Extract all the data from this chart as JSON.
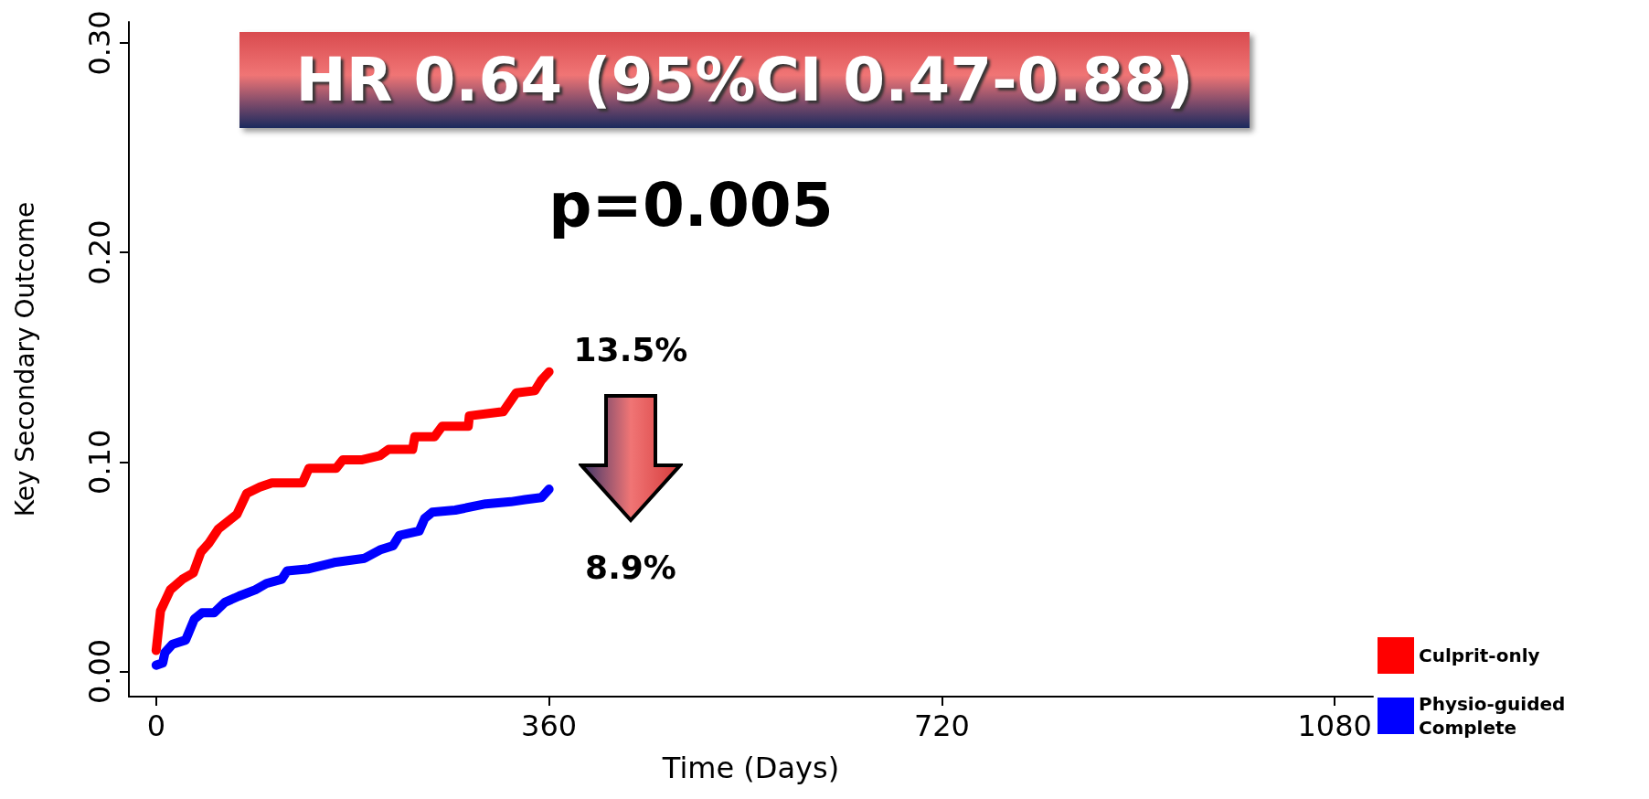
{
  "chart_data": {
    "type": "line",
    "xlabel": "Time (Days)",
    "ylabel": "Key Secondary Outcome",
    "annotations": [
      "HR 0.64 (95%CI 0.47-0.88)",
      "p=0.005",
      "13.5%",
      "8.9%"
    ],
    "xlim": [
      -25,
      1115
    ],
    "xticks": [
      0,
      360,
      720,
      1080
    ],
    "ylim": [
      -0.012,
      0.31
    ],
    "yticks": [
      {
        "value": 0,
        "label": "0.00"
      },
      {
        "value": 0.1,
        "label": "0.10"
      },
      {
        "value": 0.2,
        "label": "0.20"
      },
      {
        "value": 0.3,
        "label": "0.30"
      }
    ],
    "grid": false,
    "legend": "bottom right",
    "line_style": "solid",
    "series": [
      {
        "name": "Culprit-only",
        "color": "#ff0000",
        "x": [
          0,
          4,
          13,
          24,
          34,
          41,
          48,
          57,
          74,
          83,
          95,
          106,
          134,
          140,
          165,
          171,
          188,
          205,
          213,
          235,
          237,
          255,
          262,
          286,
          287,
          318,
          330,
          347,
          353,
          360
        ],
        "values": [
          0.01,
          0.029,
          0.039,
          0.044,
          0.047,
          0.057,
          0.061,
          0.068,
          0.075,
          0.085,
          0.088,
          0.09,
          0.09,
          0.097,
          0.097,
          0.101,
          0.101,
          0.103,
          0.106,
          0.106,
          0.112,
          0.112,
          0.117,
          0.117,
          0.122,
          0.124,
          0.133,
          0.134,
          0.139,
          0.143
        ]
      },
      {
        "name": "Physio-guided Complete",
        "color": "#0000ff",
        "x": [
          0,
          6,
          8,
          15,
          27,
          35,
          42,
          53,
          63,
          76,
          91,
          101,
          115,
          120,
          140,
          163,
          191,
          205,
          217,
          223,
          241,
          246,
          253,
          274,
          302,
          325,
          338,
          353,
          360
        ],
        "values": [
          0.003,
          0.004,
          0.009,
          0.013,
          0.015,
          0.025,
          0.028,
          0.028,
          0.033,
          0.036,
          0.039,
          0.042,
          0.044,
          0.048,
          0.049,
          0.052,
          0.054,
          0.058,
          0.06,
          0.065,
          0.067,
          0.073,
          0.076,
          0.077,
          0.08,
          0.081,
          0.082,
          0.083,
          0.087
        ]
      }
    ]
  }
}
